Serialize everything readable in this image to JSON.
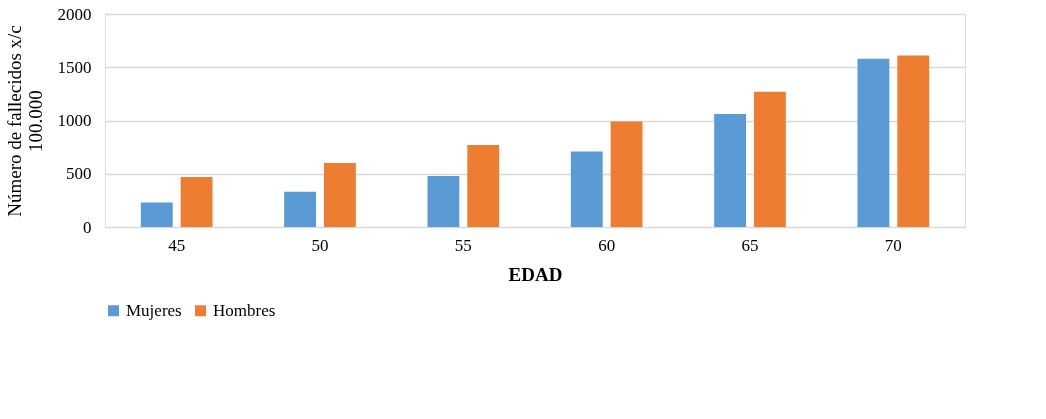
{
  "chart_data": {
    "type": "bar",
    "xlabel": "EDAD",
    "ylabel": "Número de fallecidos x/c 100.000",
    "categories": [
      "45",
      "50",
      "55",
      "60",
      "65",
      "70"
    ],
    "series": [
      {
        "name": "Mujeres",
        "color": "#5b9bd5",
        "values": [
          230,
          330,
          480,
          710,
          1060,
          1580
        ]
      },
      {
        "name": "Hombres",
        "color": "#ed7d31",
        "values": [
          470,
          600,
          770,
          990,
          1270,
          1610
        ]
      }
    ],
    "ylim": [
      0,
      2000
    ],
    "yticks": [
      0,
      500,
      1000,
      1500,
      2000
    ],
    "grid": "y",
    "legend": "bottom"
  }
}
